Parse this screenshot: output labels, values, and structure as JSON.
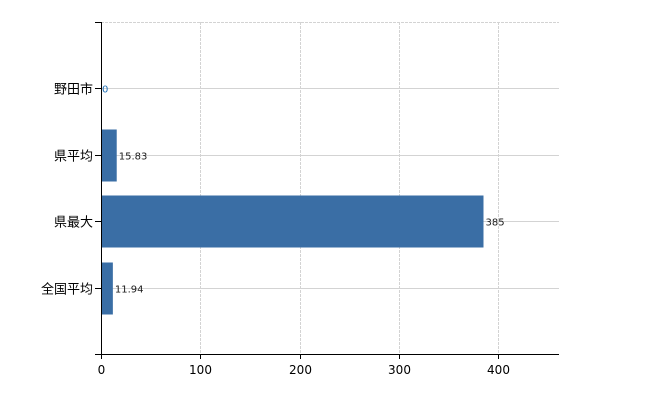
{
  "chart_data": {
    "type": "bar",
    "orientation": "horizontal",
    "categories": [
      "野田市",
      "県平均",
      "県最大",
      "全国平均"
    ],
    "values": [
      0,
      15.83,
      385,
      11.94
    ],
    "data_labels": [
      "0",
      "15.83",
      "385",
      "11.94"
    ],
    "xlim": [
      0,
      461
    ],
    "xticks": [
      0,
      100,
      200,
      300,
      400
    ],
    "xtick_labels": [
      "0",
      "100",
      "200",
      "300",
      "400"
    ],
    "title": "",
    "xlabel": "",
    "ylabel": "",
    "grid": true,
    "legend": "none",
    "colors": {
      "bar": "#3a6ea5",
      "grid": "#d3d3d3",
      "axis": "#000000",
      "label": "#1a1a1a"
    }
  }
}
